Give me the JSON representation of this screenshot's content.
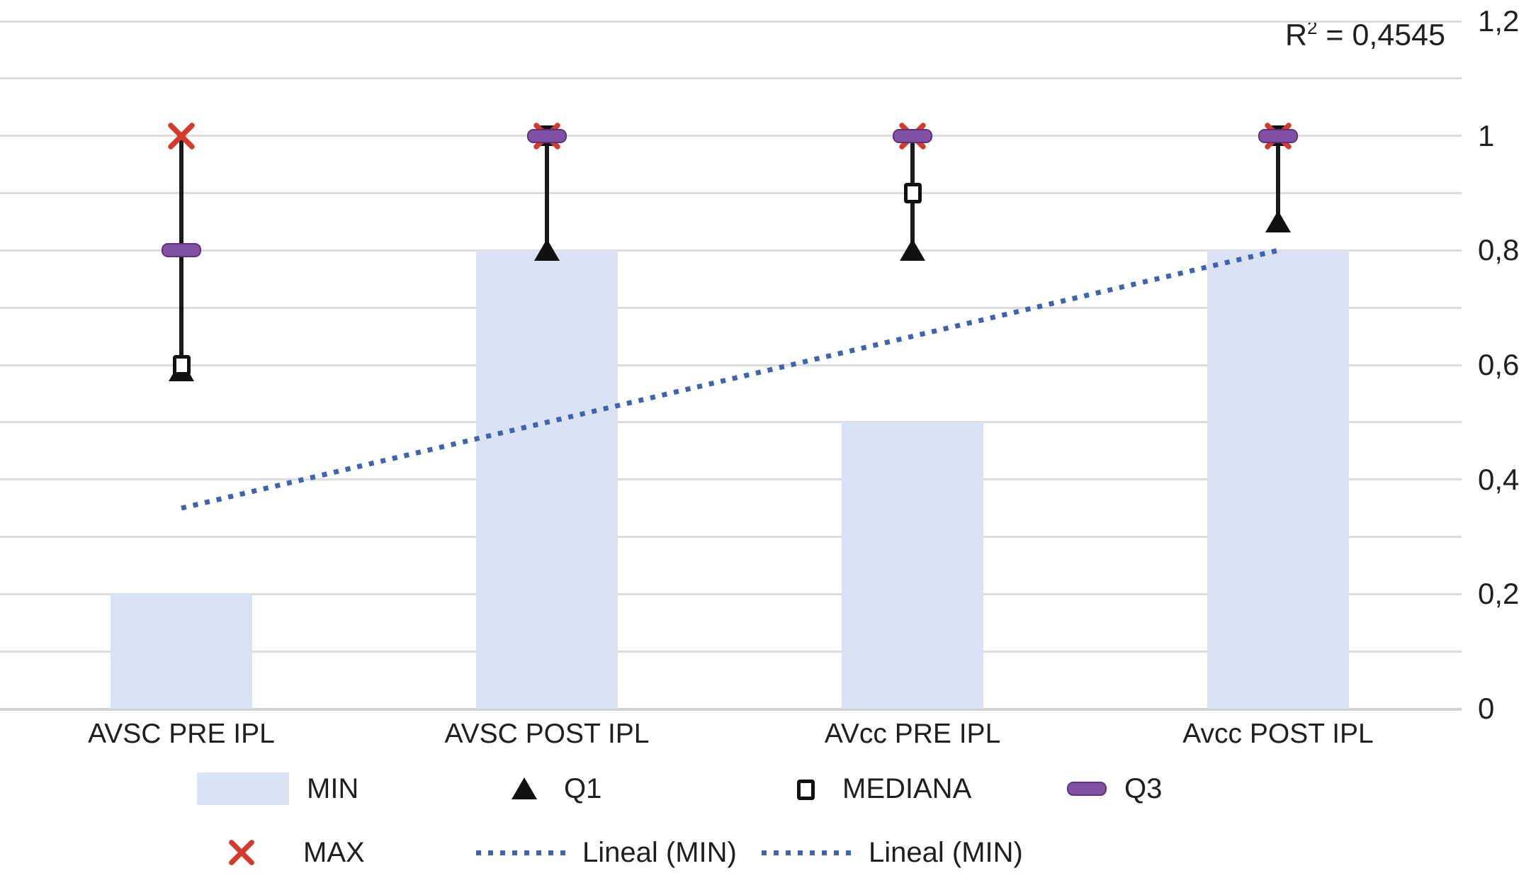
{
  "annotation": {
    "r2_base": "R",
    "r2_sup": "2",
    "r2_rest": " = 0,4545"
  },
  "legend": {
    "row1": [
      {
        "label": "MIN",
        "marker": "bar-swatch"
      },
      {
        "label": "Q1",
        "marker": "filled-triangle"
      },
      {
        "label": "MEDIANA",
        "marker": "open-square"
      },
      {
        "label": "Q3",
        "marker": "thick-dash"
      }
    ],
    "row2": [
      {
        "label": "MAX",
        "marker": "x-cross"
      },
      {
        "label": "Lineal (MIN)",
        "marker": "dotted-line"
      },
      {
        "label": "Lineal (MIN)",
        "marker": "dotted-line"
      }
    ]
  },
  "chart_data": {
    "type": "bar",
    "subtype": "bar-with-scatter-markers-and-trendline",
    "categories": [
      "AVSC PRE IPL",
      "AVSC POST IPL",
      "AVcc PRE IPL",
      "Avcc POST IPL"
    ],
    "series": [
      {
        "name": "MIN",
        "type": "bar",
        "marker": "bar-swatch",
        "color": "#dae3f3",
        "values": [
          0.2,
          0.8,
          0.5,
          0.8
        ]
      },
      {
        "name": "Q1",
        "type": "scatter",
        "marker": "filled-triangle",
        "color": "#111111",
        "values": [
          0.59,
          0.8,
          0.8,
          0.85
        ]
      },
      {
        "name": "MEDIANA",
        "type": "scatter",
        "marker": "open-square",
        "color": "#111111",
        "values": [
          0.6,
          1.0,
          0.9,
          1.0
        ]
      },
      {
        "name": "Q3",
        "type": "scatter",
        "marker": "thick-dash",
        "color": "#8250a4",
        "values": [
          0.8,
          1.0,
          1.0,
          1.0
        ]
      },
      {
        "name": "MAX",
        "type": "scatter",
        "marker": "x-cross",
        "color": "#d23a2e",
        "values": [
          1.0,
          1.0,
          1.0,
          1.0
        ]
      }
    ],
    "high_low_lines": {
      "from_series": "MAX",
      "to_series": "Q1",
      "color": "#1a1a1a"
    },
    "trendline": {
      "label": "Lineal (MIN)",
      "of_series": "MIN",
      "start_value": 0.35,
      "end_value": 0.8,
      "color": "#3f63ad",
      "style": "dotted",
      "r_squared": "0,4545"
    },
    "y_axis": {
      "min": 0,
      "max": 1.2,
      "minor_grid_step": 0.1,
      "decimal_separator": ",",
      "tick_values": [
        1.2,
        1,
        0.8,
        0.6,
        0.4,
        0.2,
        0
      ],
      "tick_labels": [
        "1,2",
        "1",
        "0,8",
        "0,6",
        "0,4",
        "0,2",
        "0"
      ],
      "side": "right"
    },
    "grid": true,
    "legend_position": "bottom"
  }
}
